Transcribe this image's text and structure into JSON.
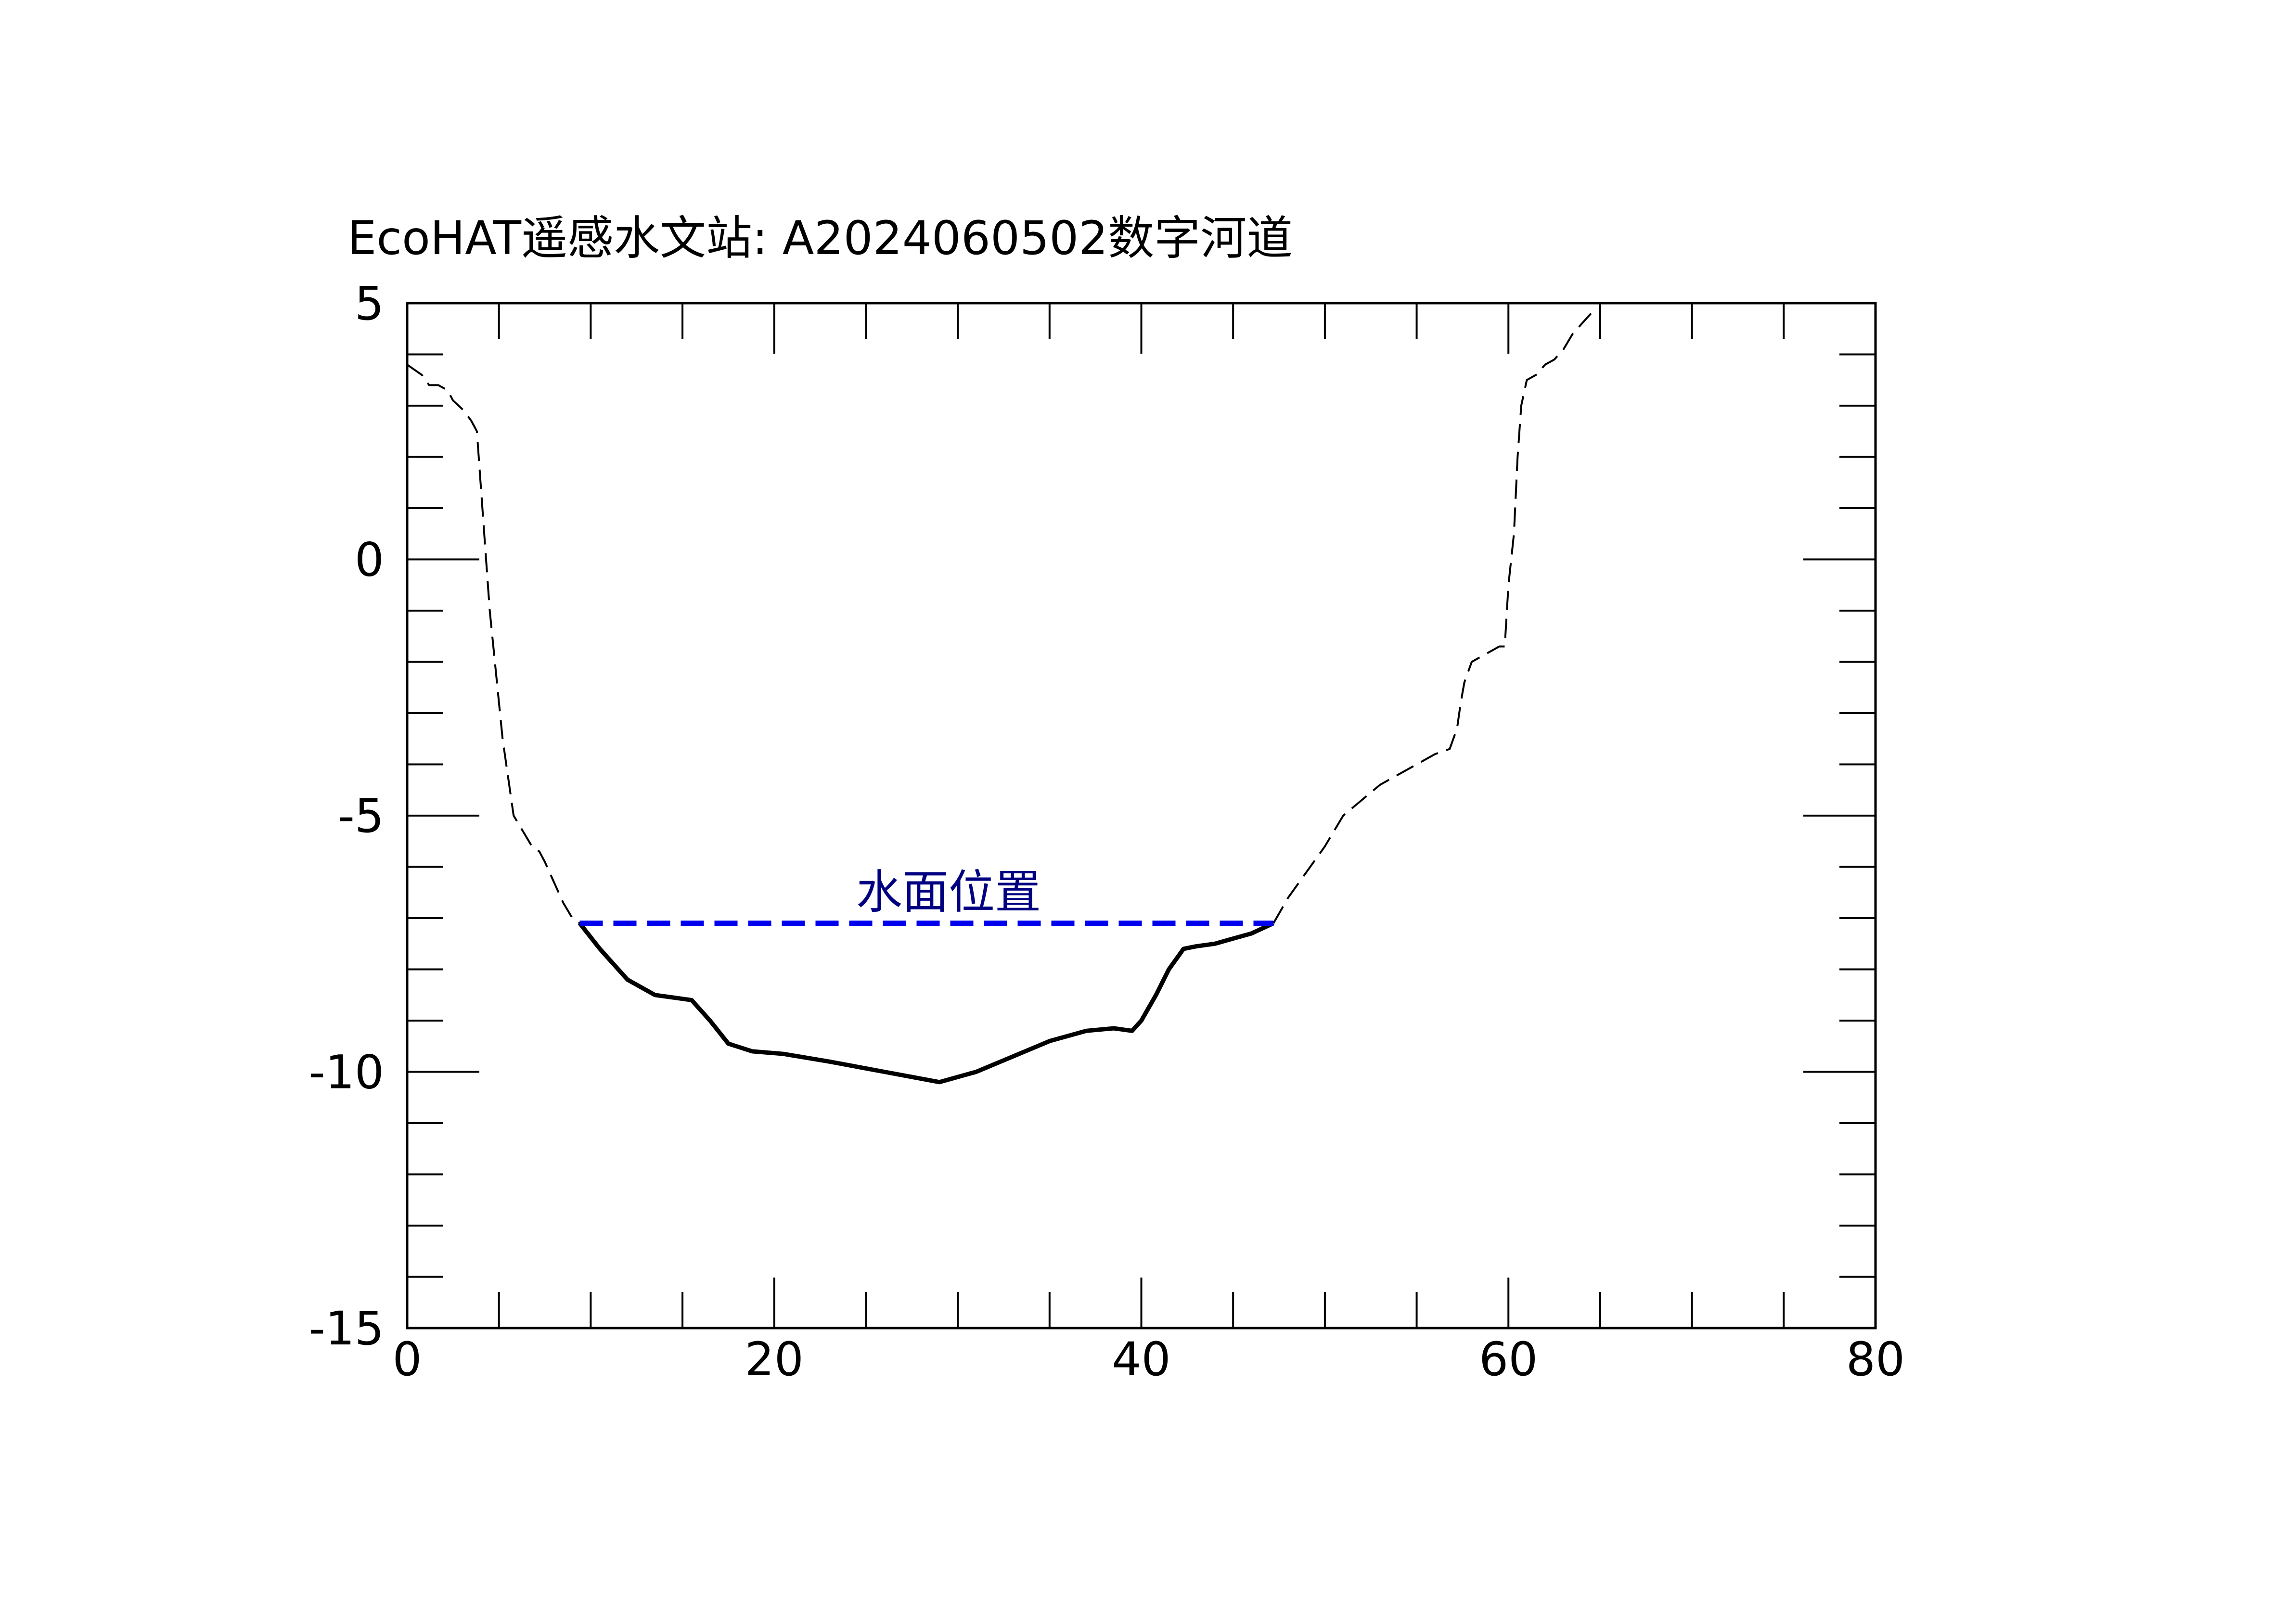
{
  "chart_data": {
    "type": "line",
    "title": "EcoHAT遥感水文站: A2024060502数字河道",
    "xlabel": "",
    "ylabel": "",
    "xlim": [
      0,
      80
    ],
    "ylim": [
      -15,
      5
    ],
    "xticks": [
      0,
      20,
      40,
      60,
      80
    ],
    "yticks": [
      5,
      0,
      -5,
      -10,
      -15
    ],
    "xtick_labels": [
      "0",
      "20",
      "40",
      "60",
      "80"
    ],
    "ytick_labels": [
      "5",
      "0",
      "-5",
      "-10",
      "-15"
    ],
    "grid": false,
    "legend": "none",
    "series": [
      {
        "style": "dashed",
        "color": "#000000",
        "x": [
          0,
          0.8,
          1.2,
          1.7,
          2.2,
          2.5,
          2.8,
          3.1,
          3.5,
          3.8,
          4.0,
          4.5,
          5.2,
          5.8,
          6.3,
          6.8,
          7.2,
          7.5,
          8.0,
          8.5,
          9.0,
          9.4
        ],
        "y": [
          3.8,
          3.6,
          3.4,
          3.4,
          3.3,
          3.1,
          3.0,
          2.9,
          2.7,
          2.5,
          1.5,
          -1.0,
          -3.5,
          -5.0,
          -5.3,
          -5.6,
          -5.7,
          -5.9,
          -6.3,
          -6.7,
          -7.0,
          -7.1
        ]
      },
      {
        "style": "solid",
        "color": "#000000",
        "x": [
          9.4,
          10.5,
          12.0,
          13.5,
          14.5,
          15.5,
          16.5,
          17.5,
          18.8,
          20.5,
          23.0,
          26.0,
          29.0,
          31.0,
          33.0,
          35.0,
          37.0,
          38.5,
          39.5,
          40.0,
          40.8,
          41.5,
          42.3,
          43.0,
          44.0,
          45.0,
          46.0,
          47.2
        ],
        "y": [
          -7.1,
          -7.6,
          -8.2,
          -8.5,
          -8.55,
          -8.6,
          -9.0,
          -9.45,
          -9.6,
          -9.65,
          -9.8,
          -10.0,
          -10.2,
          -10.0,
          -9.7,
          -9.4,
          -9.2,
          -9.15,
          -9.2,
          -9.0,
          -8.5,
          -8.0,
          -7.6,
          -7.55,
          -7.5,
          -7.4,
          -7.3,
          -7.1
        ]
      },
      {
        "style": "dashed",
        "color": "#000000",
        "x": [
          47.2,
          48.0,
          49.0,
          50.0,
          50.5,
          51.0,
          52.0,
          53.0,
          54.0,
          55.0,
          56.0,
          56.8,
          57.2,
          57.4,
          57.6,
          58.0,
          58.5,
          59.0,
          59.5,
          59.8,
          60.0,
          60.3,
          60.5,
          60.7,
          61.0,
          61.5,
          62.0,
          62.5,
          63.0,
          63.5,
          64.0,
          64.5
        ],
        "y": [
          -7.1,
          -6.6,
          -6.1,
          -5.6,
          -5.3,
          -5.0,
          -4.7,
          -4.4,
          -4.2,
          -4.0,
          -3.8,
          -3.7,
          -3.3,
          -2.8,
          -2.4,
          -2.0,
          -1.9,
          -1.8,
          -1.7,
          -1.7,
          -0.5,
          0.5,
          2.0,
          3.0,
          3.5,
          3.6,
          3.8,
          3.9,
          4.1,
          4.4,
          4.6,
          4.8
        ]
      },
      {
        "name": "水面位置",
        "style": "dashed",
        "color": "#0000ee",
        "x": [
          9.4,
          47.2
        ],
        "y": [
          -7.1,
          -7.1
        ]
      }
    ],
    "annotations": [
      {
        "text": "水面位置",
        "x": 29.5,
        "y": -6.5,
        "color": "#000080"
      }
    ]
  }
}
